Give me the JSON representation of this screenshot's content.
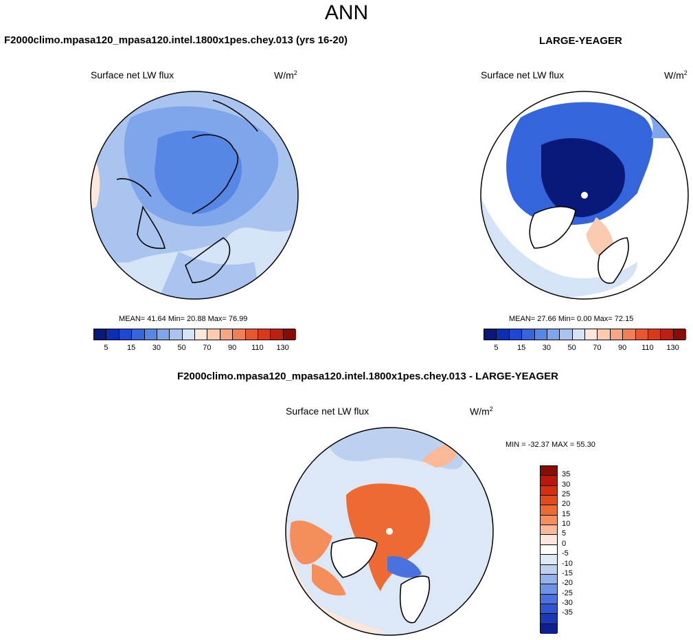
{
  "main_title": "ANN",
  "panel1": {
    "case_title": "F2000climo.mpasa120_mpasa120.intel.1800x1pes.chey.013 (yrs 16-20)",
    "variable": "Surface net LW flux",
    "units": "W/m",
    "units_sup": "2",
    "stats": "MEAN=  41.64  Min=  20.88  Max=  76.99"
  },
  "panel2": {
    "case_title": "LARGE-YEAGER",
    "variable": "Surface net LW flux",
    "units": "W/m",
    "units_sup": "2",
    "stats": "MEAN=  27.66  Min=   0.00  Max=  72.15"
  },
  "panel3": {
    "case_title": "F2000climo.mpasa120_mpasa120.intel.1800x1pes.chey.013 - LARGE-YEAGER",
    "variable": "Surface net LW flux",
    "units": "W/m",
    "units_sup": "2",
    "stats": "MIN = -32.37 MAX =  55.30"
  },
  "colorbar_horizontal": {
    "colors": [
      "#08197a",
      "#0c2eb2",
      "#1c48d4",
      "#3465dc",
      "#5787e4",
      "#7fa5ea",
      "#a9c4ef",
      "#d4e3f6",
      "#fde6da",
      "#fbcbb0",
      "#f6a683",
      "#f07e57",
      "#e8562f",
      "#d9381a",
      "#bd1f10",
      "#8a0c06"
    ],
    "labels": [
      "5",
      "15",
      "30",
      "50",
      "70",
      "90",
      "110",
      "130"
    ]
  },
  "colorbar_vertical": {
    "colors": [
      "#8a0c06",
      "#b8190c",
      "#d3300f",
      "#e34a1c",
      "#ee6a33",
      "#f48f5c",
      "#f9b896",
      "#fde7da",
      "#fffefc",
      "#dde8f7",
      "#bcd0f0",
      "#94b2ea",
      "#6e93e4",
      "#4a72dc",
      "#2f55cf",
      "#1a39b6",
      "#0c2090"
    ],
    "labels": [
      "35",
      "30",
      "25",
      "20",
      "15",
      "10",
      "5",
      "0",
      "-5",
      "-10",
      "-15",
      "-20",
      "-25",
      "-30",
      "-35"
    ]
  }
}
